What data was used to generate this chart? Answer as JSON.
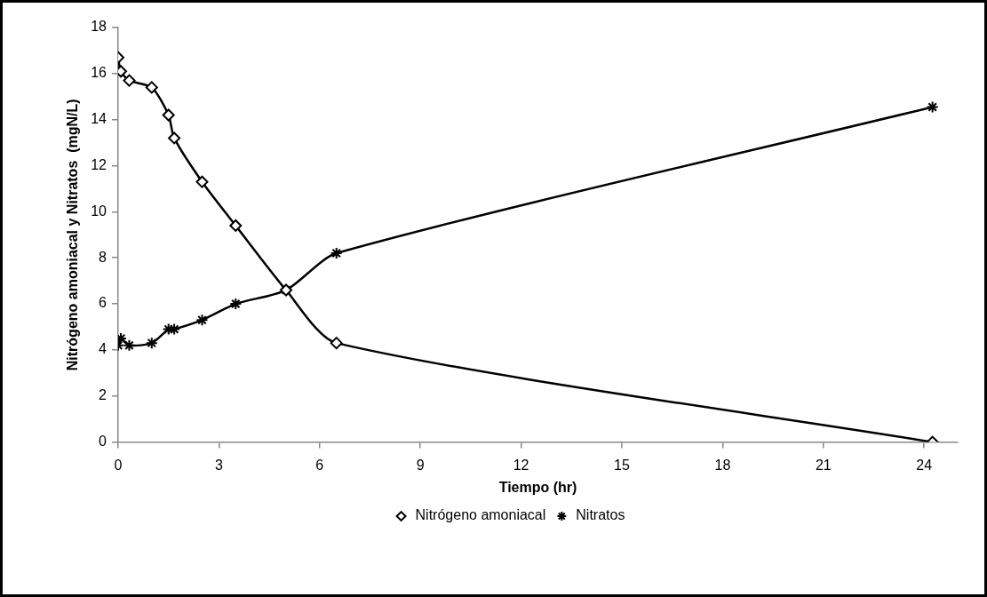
{
  "chart_data": {
    "type": "line",
    "xlabel": "Tiempo (hr)",
    "ylabel": "Nitrógeno amoniacal y Nitratos  (mgN/L)",
    "xlim": [
      0,
      25
    ],
    "xticks": [
      0,
      3,
      6,
      9,
      12,
      15,
      18,
      21,
      24
    ],
    "ylim": [
      0,
      18
    ],
    "yticks": [
      0,
      2,
      4,
      6,
      8,
      10,
      12,
      14,
      16,
      18
    ],
    "legend": "bottom",
    "series": [
      {
        "name": "Nitrógeno amoniacal",
        "color": "#000000",
        "marker": "diamond",
        "x": [
          0,
          0.08,
          0.33,
          1,
          1.5,
          1.67,
          2.5,
          3.5,
          5,
          6.5,
          24.25
        ],
        "values": [
          16.7,
          16.1,
          15.7,
          15.4,
          14.2,
          13.2,
          11.3,
          9.4,
          6.6,
          4.3,
          0
        ]
      },
      {
        "name": "Nitratos",
        "color": "#000000",
        "marker": "cross",
        "x": [
          0,
          0.08,
          0.33,
          1,
          1.5,
          1.67,
          2.5,
          3.5,
          5,
          6.5,
          24.25
        ],
        "values": [
          4.2,
          4.5,
          4.2,
          4.3,
          4.9,
          4.9,
          5.3,
          6.0,
          6.6,
          8.2,
          14.55
        ]
      }
    ]
  }
}
